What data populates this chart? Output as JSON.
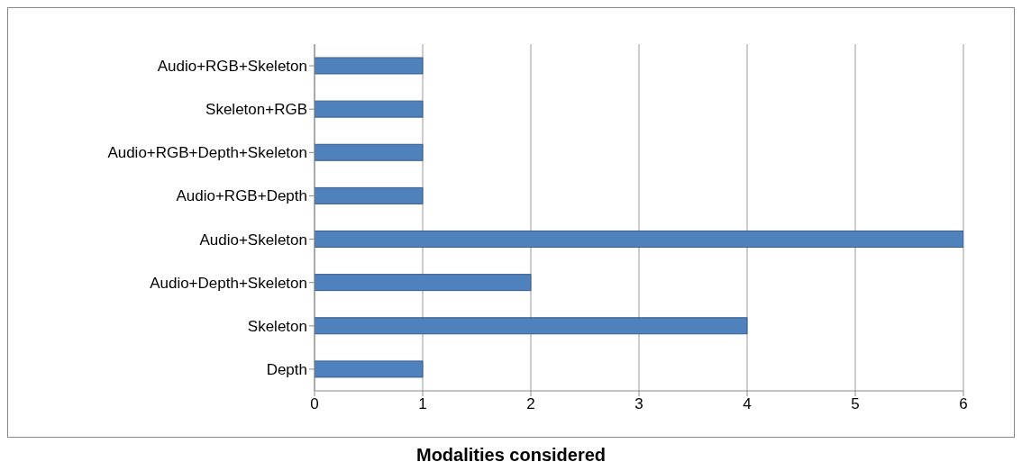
{
  "chart_data": {
    "type": "bar",
    "orientation": "horizontal",
    "xlabel": "Modalities considered",
    "categories": [
      "Audio+RGB+Skeleton",
      "Skeleton+RGB",
      "Audio+RGB+Depth+Skeleton",
      "Audio+RGB+Depth",
      "Audio+Skeleton",
      "Audio+Depth+Skeleton",
      "Skeleton",
      "Depth"
    ],
    "values": [
      1,
      1,
      1,
      1,
      6,
      2,
      4,
      1
    ],
    "color": "#4f81bd",
    "xlim": [
      0,
      6
    ],
    "xticks": [
      0,
      1,
      2,
      3,
      4,
      5,
      6
    ],
    "grid": "x",
    "legend": false
  }
}
